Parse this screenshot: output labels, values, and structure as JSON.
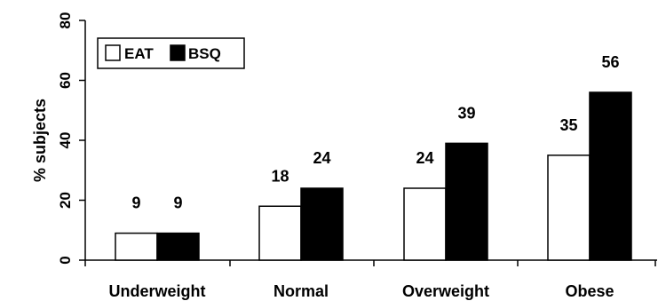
{
  "chart_data": {
    "type": "bar",
    "title": "",
    "xlabel": "",
    "ylabel": "% subjects",
    "ylim": [
      0,
      80
    ],
    "yticks": [
      0,
      20,
      40,
      60,
      80
    ],
    "grid": false,
    "legend_position": "top-left",
    "categories": [
      "Underweight",
      "Normal",
      "Overweight",
      "Obese"
    ],
    "series": [
      {
        "name": "EAT",
        "values": [
          9,
          18,
          24,
          35
        ],
        "color": "#ffffff"
      },
      {
        "name": "BSQ",
        "values": [
          9,
          24,
          39,
          56
        ],
        "color": "#000000"
      }
    ],
    "data_labels": [
      [
        "9",
        "18",
        "24",
        "35"
      ],
      [
        "9",
        "24",
        "39",
        "56"
      ]
    ]
  }
}
